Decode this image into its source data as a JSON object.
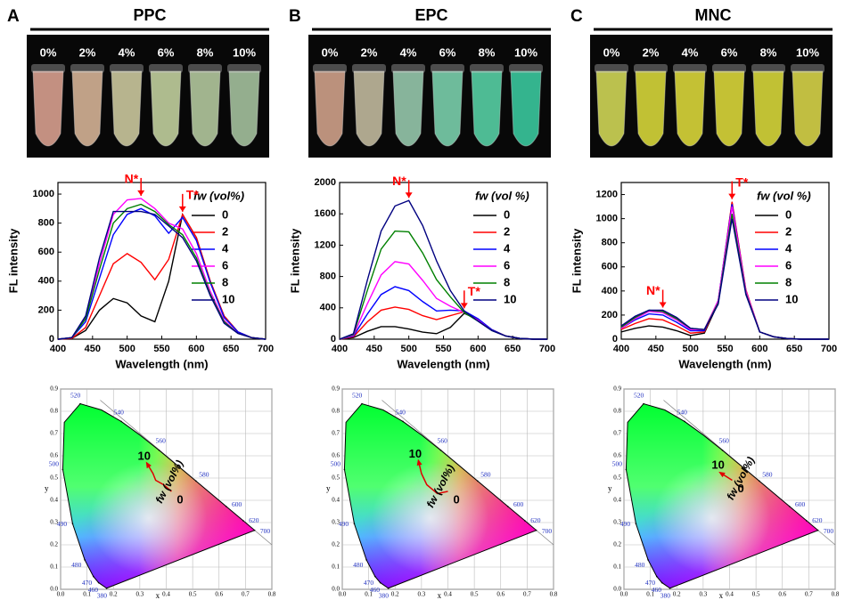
{
  "panels": [
    {
      "letter": "A",
      "title": "PPC",
      "photo_labels": [
        "0%",
        "2%",
        "4%",
        "6%",
        "8%",
        "10%"
      ]
    },
    {
      "letter": "B",
      "title": "EPC",
      "photo_labels": [
        "0%",
        "2%",
        "4%",
        "6%",
        "8%",
        "10%"
      ]
    },
    {
      "letter": "C",
      "title": "MNC",
      "photo_labels": [
        "0%",
        "2%",
        "4%",
        "6%",
        "8%",
        "10%"
      ]
    }
  ],
  "chart_data": [
    {
      "type": "line",
      "xlabel": "Wavelength (nm)",
      "ylabel": "FL intensity",
      "x": [
        400,
        420,
        440,
        460,
        480,
        500,
        520,
        540,
        560,
        580,
        600,
        620,
        640,
        660,
        680,
        700
      ],
      "xlim": [
        400,
        700
      ],
      "xticks": [
        400,
        450,
        500,
        550,
        600,
        650,
        700
      ],
      "ylim": [
        0,
        1080
      ],
      "yticks": [
        0,
        200,
        400,
        600,
        800,
        1000
      ],
      "legend_title": "fw (vol%)",
      "series": [
        {
          "name": "0",
          "color": "#000000",
          "values": [
            0,
            5,
            60,
            200,
            280,
            250,
            160,
            120,
            400,
            860,
            700,
            400,
            160,
            50,
            10,
            0
          ]
        },
        {
          "name": "2",
          "color": "#ff0000",
          "values": [
            0,
            5,
            80,
            300,
            520,
            590,
            530,
            410,
            550,
            860,
            700,
            400,
            160,
            50,
            10,
            0
          ]
        },
        {
          "name": "4",
          "color": "#0000ff",
          "values": [
            0,
            10,
            120,
            420,
            720,
            860,
            900,
            850,
            730,
            840,
            680,
            390,
            150,
            50,
            10,
            0
          ]
        },
        {
          "name": "6",
          "color": "#ff00ff",
          "values": [
            0,
            10,
            150,
            520,
            860,
            960,
            970,
            900,
            800,
            760,
            590,
            330,
            130,
            40,
            10,
            0
          ]
        },
        {
          "name": "8",
          "color": "#008000",
          "values": [
            0,
            10,
            140,
            480,
            800,
            900,
            930,
            880,
            790,
            720,
            560,
            310,
            120,
            40,
            10,
            0
          ]
        },
        {
          "name": "10",
          "color": "#000080",
          "values": [
            0,
            10,
            160,
            560,
            880,
            880,
            880,
            860,
            780,
            700,
            540,
            300,
            110,
            40,
            10,
            0
          ]
        }
      ],
      "annotations": [
        {
          "text": "N*",
          "x": 520
        },
        {
          "text": "T*",
          "x": 580
        }
      ]
    },
    {
      "type": "line",
      "xlabel": "Wavelength (nm)",
      "ylabel": "FL intensity",
      "x": [
        400,
        420,
        440,
        460,
        480,
        500,
        520,
        540,
        560,
        580,
        600,
        620,
        640,
        660,
        680,
        700
      ],
      "xlim": [
        400,
        700
      ],
      "xticks": [
        400,
        450,
        500,
        550,
        600,
        650,
        700
      ],
      "ylim": [
        0,
        2000
      ],
      "yticks": [
        0,
        400,
        800,
        1200,
        1600,
        2000
      ],
      "legend_title": "fw (vol %)",
      "series": [
        {
          "name": "0",
          "color": "#000000",
          "values": [
            0,
            20,
            100,
            160,
            160,
            130,
            90,
            70,
            150,
            330,
            250,
            120,
            40,
            10,
            0,
            0
          ]
        },
        {
          "name": "2",
          "color": "#ff0000",
          "values": [
            0,
            30,
            220,
            370,
            410,
            380,
            300,
            250,
            300,
            350,
            250,
            120,
            40,
            10,
            0,
            0
          ]
        },
        {
          "name": "4",
          "color": "#0000ff",
          "values": [
            0,
            40,
            320,
            570,
            670,
            620,
            480,
            360,
            370,
            360,
            260,
            120,
            40,
            10,
            0,
            0
          ]
        },
        {
          "name": "6",
          "color": "#ff00ff",
          "values": [
            0,
            50,
            450,
            820,
            990,
            960,
            750,
            520,
            420,
            340,
            240,
            110,
            40,
            10,
            0,
            0
          ]
        },
        {
          "name": "8",
          "color": "#008000",
          "values": [
            0,
            60,
            620,
            1150,
            1380,
            1370,
            1100,
            760,
            540,
            340,
            230,
            110,
            40,
            10,
            0,
            0
          ]
        },
        {
          "name": "10",
          "color": "#000080",
          "values": [
            0,
            70,
            750,
            1380,
            1700,
            1770,
            1450,
            1000,
            620,
            360,
            230,
            110,
            40,
            10,
            0,
            0
          ]
        }
      ],
      "annotations": [
        {
          "text": "N*",
          "x": 500
        },
        {
          "text": "T*",
          "x": 580
        }
      ]
    },
    {
      "type": "line",
      "xlabel": "Wavelength (nm)",
      "ylabel": "FL intensity",
      "x": [
        400,
        420,
        440,
        460,
        480,
        500,
        520,
        540,
        560,
        580,
        600,
        620,
        640,
        660,
        680,
        700
      ],
      "xlim": [
        400,
        700
      ],
      "xticks": [
        400,
        450,
        500,
        550,
        600,
        650,
        700
      ],
      "ylim": [
        0,
        1300
      ],
      "yticks": [
        0,
        200,
        400,
        600,
        800,
        1000,
        1200
      ],
      "legend_title": "fw (vol %)",
      "series": [
        {
          "name": "0",
          "color": "#000000",
          "values": [
            60,
            90,
            110,
            100,
            70,
            30,
            50,
            300,
            1130,
            400,
            60,
            20,
            5,
            0,
            0,
            0
          ]
        },
        {
          "name": "2",
          "color": "#ff0000",
          "values": [
            80,
            130,
            170,
            160,
            110,
            50,
            60,
            310,
            1140,
            410,
            60,
            20,
            5,
            0,
            0,
            0
          ]
        },
        {
          "name": "4",
          "color": "#0000ff",
          "values": [
            90,
            160,
            210,
            200,
            140,
            70,
            70,
            320,
            1120,
            400,
            60,
            20,
            5,
            0,
            0,
            0
          ]
        },
        {
          "name": "6",
          "color": "#ff00ff",
          "values": [
            90,
            170,
            230,
            220,
            160,
            80,
            80,
            320,
            1100,
            400,
            60,
            20,
            5,
            0,
            0,
            0
          ]
        },
        {
          "name": "8",
          "color": "#008000",
          "values": [
            100,
            180,
            240,
            230,
            170,
            90,
            80,
            300,
            1040,
            380,
            60,
            20,
            5,
            0,
            0,
            0
          ]
        },
        {
          "name": "10",
          "color": "#000080",
          "values": [
            110,
            190,
            240,
            240,
            180,
            90,
            80,
            290,
            1000,
            370,
            60,
            20,
            5,
            0,
            0,
            0
          ]
        }
      ],
      "annotations": [
        {
          "text": "N*",
          "x": 460
        },
        {
          "text": "T*",
          "x": 560
        }
      ]
    },
    {
      "type": "cie",
      "xlabel": "x",
      "ylabel": "y",
      "grid": true,
      "xlim": [
        0,
        0.8
      ],
      "xticks": [
        {
          "value": 0,
          "label": "0.0"
        },
        0.1,
        0.2,
        0.3,
        0.4,
        0.5,
        0.6,
        0.7,
        0.8
      ],
      "ylim": [
        0,
        0.9
      ],
      "yticks": [
        {
          "value": 0,
          "label": "0.0"
        },
        0.1,
        0.2,
        0.3,
        0.4,
        0.5,
        0.6,
        0.7,
        0.8,
        0.9
      ],
      "wavelength_labels": [
        {
          "label": "520",
          "x": 0.0743,
          "y": 0.8338
        },
        {
          "label": "540",
          "x": 0.2296,
          "y": 0.7543
        },
        {
          "label": "560",
          "x": 0.3731,
          "y": 0.6245
        },
        {
          "label": "580",
          "x": 0.5125,
          "y": 0.4866
        },
        {
          "label": "600",
          "x": 0.627,
          "y": 0.3725
        },
        {
          "label": "620",
          "x": 0.6915,
          "y": 0.3083
        },
        {
          "label": "700",
          "x": 0.7347,
          "y": 0.2653
        },
        {
          "label": "500",
          "x": 0.0082,
          "y": 0.5384
        },
        {
          "label": "490",
          "x": 0.0454,
          "y": 0.295
        },
        {
          "label": "480",
          "x": 0.0913,
          "y": 0.1327
        },
        {
          "label": "470",
          "x": 0.1241,
          "y": 0.0578
        },
        {
          "label": "460",
          "x": 0.144,
          "y": 0.0297
        },
        {
          "label": "380",
          "x": 0.1741,
          "y": 0.005
        }
      ],
      "trajectory": {
        "x": [
          0.42,
          0.39,
          0.36,
          0.35,
          0.33
        ],
        "y": [
          0.44,
          0.47,
          0.49,
          0.52,
          0.56
        ]
      },
      "annotations": [
        {
          "text": "0"
        },
        {
          "text": "10"
        },
        {
          "text": "fw (vol%)"
        }
      ]
    },
    {
      "type": "cie",
      "xlabel": "x",
      "ylabel": "y",
      "grid": true,
      "xlim": [
        0,
        0.8
      ],
      "xticks": [
        {
          "value": 0,
          "label": "0.0"
        },
        0.1,
        0.2,
        0.3,
        0.4,
        0.5,
        0.6,
        0.7,
        0.8
      ],
      "ylim": [
        0,
        0.9
      ],
      "yticks": [
        {
          "value": 0,
          "label": "0.0"
        },
        0.1,
        0.2,
        0.3,
        0.4,
        0.5,
        0.6,
        0.7,
        0.8,
        0.9
      ],
      "wavelength_labels": [
        {
          "label": "520",
          "x": 0.0743,
          "y": 0.8338
        },
        {
          "label": "540",
          "x": 0.2296,
          "y": 0.7543
        },
        {
          "label": "560",
          "x": 0.3731,
          "y": 0.6245
        },
        {
          "label": "580",
          "x": 0.5125,
          "y": 0.4866
        },
        {
          "label": "600",
          "x": 0.627,
          "y": 0.3725
        },
        {
          "label": "620",
          "x": 0.6915,
          "y": 0.3083
        },
        {
          "label": "700",
          "x": 0.7347,
          "y": 0.2653
        },
        {
          "label": "500",
          "x": 0.0082,
          "y": 0.5384
        },
        {
          "label": "490",
          "x": 0.0454,
          "y": 0.295
        },
        {
          "label": "480",
          "x": 0.0913,
          "y": 0.1327
        },
        {
          "label": "470",
          "x": 0.1241,
          "y": 0.0578
        },
        {
          "label": "460",
          "x": 0.144,
          "y": 0.0297
        },
        {
          "label": "380",
          "x": 0.1741,
          "y": 0.005
        }
      ],
      "trajectory": {
        "x": [
          0.4,
          0.36,
          0.32,
          0.3,
          0.29
        ],
        "y": [
          0.44,
          0.43,
          0.47,
          0.52,
          0.57
        ]
      },
      "annotations": [
        {
          "text": "0"
        },
        {
          "text": "10"
        },
        {
          "text": "fw (vol%)"
        }
      ]
    },
    {
      "type": "cie",
      "xlabel": "x",
      "ylabel": "y",
      "grid": true,
      "xlim": [
        0,
        0.8
      ],
      "xticks": [
        {
          "value": 0,
          "label": "0.0"
        },
        0.1,
        0.2,
        0.3,
        0.4,
        0.5,
        0.6,
        0.7,
        0.8
      ],
      "ylim": [
        0,
        0.9
      ],
      "yticks": [
        {
          "value": 0,
          "label": "0.0"
        },
        0.1,
        0.2,
        0.3,
        0.4,
        0.5,
        0.6,
        0.7,
        0.8,
        0.9
      ],
      "wavelength_labels": [
        {
          "label": "520",
          "x": 0.0743,
          "y": 0.8338
        },
        {
          "label": "540",
          "x": 0.2296,
          "y": 0.7543
        },
        {
          "label": "560",
          "x": 0.3731,
          "y": 0.6245
        },
        {
          "label": "580",
          "x": 0.5125,
          "y": 0.4866
        },
        {
          "label": "600",
          "x": 0.627,
          "y": 0.3725
        },
        {
          "label": "620",
          "x": 0.6915,
          "y": 0.3083
        },
        {
          "label": "700",
          "x": 0.7347,
          "y": 0.2653
        },
        {
          "label": "500",
          "x": 0.0082,
          "y": 0.5384
        },
        {
          "label": "490",
          "x": 0.0454,
          "y": 0.295
        },
        {
          "label": "480",
          "x": 0.0913,
          "y": 0.1327
        },
        {
          "label": "470",
          "x": 0.1241,
          "y": 0.0578
        },
        {
          "label": "460",
          "x": 0.144,
          "y": 0.0297
        },
        {
          "label": "380",
          "x": 0.1741,
          "y": 0.005
        }
      ],
      "trajectory": {
        "x": [
          0.41,
          0.39,
          0.37
        ],
        "y": [
          0.49,
          0.505,
          0.52
        ]
      },
      "annotations": [
        {
          "text": "0"
        },
        {
          "text": "10"
        },
        {
          "text": "fw (vol%)"
        }
      ]
    }
  ]
}
